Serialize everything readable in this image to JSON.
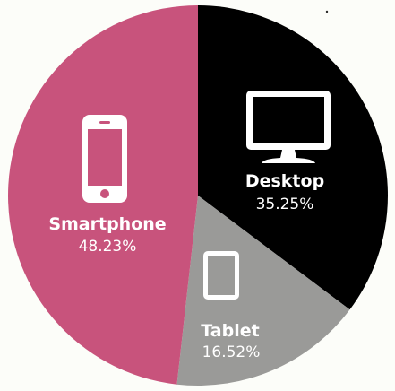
{
  "chart_data": {
    "type": "pie",
    "title": "",
    "slices": [
      {
        "label": "Desktop",
        "value": 35.25,
        "value_label": "35.25%",
        "color": "#000000",
        "icon": "desktop-monitor-icon"
      },
      {
        "label": "Tablet",
        "value": 16.52,
        "value_label": "16.52%",
        "color": "#9a9a98",
        "icon": "tablet-icon"
      },
      {
        "label": "Smartphone",
        "value": 48.23,
        "value_label": "48.23%",
        "color": "#c8537c",
        "icon": "smartphone-icon"
      }
    ],
    "start_angle": "12 o'clock",
    "direction": "clockwise",
    "legend": "none"
  }
}
